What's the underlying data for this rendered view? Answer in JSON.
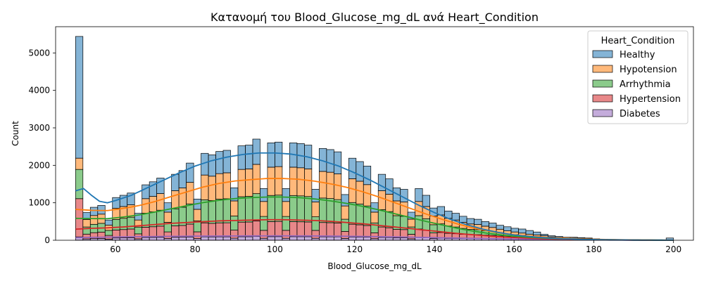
{
  "chart_data": {
    "type": "bar",
    "stacked": true,
    "title": "Κατανομή του Blood_Glucose_mg_dL ανά Heart_Condition",
    "xlabel": "Blood_Glucose_mg_dL",
    "ylabel": "Count",
    "xlim": [
      45,
      205
    ],
    "ylim": [
      0,
      5700
    ],
    "xticks": [
      60,
      80,
      100,
      120,
      140,
      160,
      180,
      200
    ],
    "yticks": [
      0,
      1000,
      2000,
      3000,
      4000,
      5000
    ],
    "grid": false,
    "legend": {
      "title": "Heart_Condition",
      "position": "top-right"
    },
    "bins": {
      "start": 50,
      "end": 200,
      "count": 81
    },
    "series": [
      {
        "name": "Healthy",
        "color": "#1f77b4",
        "totals": [
          5440,
          740,
          880,
          930,
          540,
          1140,
          1200,
          1260,
          720,
          1480,
          1560,
          1660,
          1000,
          1760,
          1860,
          2060,
          1100,
          2320,
          2280,
          2370,
          2400,
          1400,
          2520,
          2540,
          2700,
          1380,
          2600,
          2620,
          1380,
          2600,
          2580,
          2540,
          1360,
          2450,
          2420,
          2360,
          1220,
          2190,
          2100,
          1980,
          1000,
          1760,
          1640,
          1400,
          1360,
          750,
          1380,
          1200,
          860,
          900,
          780,
          720,
          640,
          580,
          560,
          500,
          460,
          400,
          360,
          320,
          300,
          260,
          220,
          160,
          120,
          100,
          80,
          80,
          70,
          60,
          40,
          30,
          20,
          20,
          10,
          10,
          10,
          10,
          10,
          10,
          60
        ]
      },
      {
        "name": "Hypotension",
        "color": "#ff7f0e"
      },
      {
        "name": "Arrhythmia",
        "color": "#2ca02c"
      },
      {
        "name": "Hypertension",
        "color": "#d62728"
      },
      {
        "name": "Diabetes",
        "color": "#9467bd"
      }
    ],
    "kde_curves": [
      {
        "series": "Healthy",
        "color": "#1f77b4",
        "points": [
          [
            50,
            1320
          ],
          [
            52,
            1380
          ],
          [
            54,
            1200
          ],
          [
            56,
            1040
          ],
          [
            58,
            1000
          ],
          [
            60,
            1060
          ],
          [
            64,
            1200
          ],
          [
            68,
            1400
          ],
          [
            72,
            1600
          ],
          [
            76,
            1800
          ],
          [
            80,
            1980
          ],
          [
            84,
            2120
          ],
          [
            88,
            2220
          ],
          [
            92,
            2290
          ],
          [
            96,
            2330
          ],
          [
            100,
            2330
          ],
          [
            104,
            2300
          ],
          [
            108,
            2230
          ],
          [
            112,
            2120
          ],
          [
            116,
            1980
          ],
          [
            120,
            1800
          ],
          [
            124,
            1600
          ],
          [
            128,
            1380
          ],
          [
            132,
            1160
          ],
          [
            136,
            940
          ],
          [
            140,
            740
          ],
          [
            144,
            560
          ],
          [
            148,
            420
          ],
          [
            152,
            300
          ],
          [
            156,
            210
          ],
          [
            160,
            140
          ],
          [
            166,
            80
          ],
          [
            172,
            40
          ],
          [
            180,
            18
          ],
          [
            190,
            6
          ],
          [
            200,
            2
          ]
        ]
      },
      {
        "series": "Hypotension",
        "color": "#ff7f0e",
        "points": [
          [
            50,
            450
          ],
          [
            54,
            420
          ],
          [
            58,
            410
          ],
          [
            62,
            440
          ],
          [
            66,
            480
          ],
          [
            70,
            540
          ],
          [
            74,
            620
          ],
          [
            78,
            700
          ],
          [
            82,
            780
          ],
          [
            86,
            840
          ],
          [
            90,
            880
          ],
          [
            94,
            900
          ],
          [
            98,
            920
          ],
          [
            102,
            920
          ],
          [
            106,
            910
          ],
          [
            110,
            880
          ],
          [
            114,
            840
          ],
          [
            118,
            790
          ],
          [
            122,
            720
          ],
          [
            126,
            640
          ],
          [
            130,
            550
          ],
          [
            134,
            460
          ],
          [
            138,
            370
          ],
          [
            142,
            290
          ],
          [
            146,
            220
          ],
          [
            150,
            160
          ],
          [
            154,
            115
          ],
          [
            158,
            80
          ],
          [
            164,
            50
          ],
          [
            170,
            30
          ],
          [
            180,
            12
          ],
          [
            190,
            4
          ],
          [
            200,
            1
          ]
        ]
      },
      {
        "series": "Arrhythmia",
        "color": "#2ca02c",
        "points": [
          [
            50,
            420
          ],
          [
            54,
            400
          ],
          [
            58,
            390
          ],
          [
            62,
            420
          ],
          [
            66,
            460
          ],
          [
            70,
            520
          ],
          [
            74,
            590
          ],
          [
            78,
            660
          ],
          [
            82,
            730
          ],
          [
            86,
            780
          ],
          [
            90,
            820
          ],
          [
            94,
            840
          ],
          [
            98,
            850
          ],
          [
            102,
            850
          ],
          [
            106,
            840
          ],
          [
            110,
            810
          ],
          [
            114,
            770
          ],
          [
            118,
            720
          ],
          [
            122,
            660
          ],
          [
            126,
            590
          ],
          [
            130,
            510
          ],
          [
            134,
            430
          ],
          [
            138,
            350
          ],
          [
            142,
            280
          ],
          [
            146,
            210
          ],
          [
            150,
            155
          ],
          [
            154,
            110
          ],
          [
            158,
            75
          ],
          [
            164,
            45
          ],
          [
            170,
            25
          ],
          [
            180,
            10
          ],
          [
            190,
            3
          ],
          [
            200,
            1
          ]
        ]
      },
      {
        "series": "Hypertension",
        "color": "#d62728",
        "points": [
          [
            50,
            260
          ],
          [
            54,
            280
          ],
          [
            58,
            290
          ],
          [
            62,
            310
          ],
          [
            66,
            340
          ],
          [
            70,
            370
          ],
          [
            74,
            400
          ],
          [
            78,
            420
          ],
          [
            82,
            440
          ],
          [
            86,
            460
          ],
          [
            90,
            470
          ],
          [
            94,
            480
          ],
          [
            98,
            490
          ],
          [
            102,
            490
          ],
          [
            106,
            480
          ],
          [
            110,
            470
          ],
          [
            114,
            450
          ],
          [
            118,
            420
          ],
          [
            122,
            390
          ],
          [
            126,
            350
          ],
          [
            130,
            310
          ],
          [
            134,
            270
          ],
          [
            138,
            230
          ],
          [
            142,
            190
          ],
          [
            146,
            150
          ],
          [
            150,
            120
          ],
          [
            154,
            90
          ],
          [
            158,
            65
          ],
          [
            164,
            40
          ],
          [
            170,
            25
          ],
          [
            180,
            10
          ],
          [
            190,
            3
          ],
          [
            200,
            1
          ]
        ]
      },
      {
        "series": "Diabetes",
        "color": "#9467bd",
        "points": [
          [
            50,
            70
          ],
          [
            56,
            80
          ],
          [
            62,
            90
          ],
          [
            70,
            100
          ],
          [
            80,
            110
          ],
          [
            90,
            115
          ],
          [
            100,
            118
          ],
          [
            110,
            115
          ],
          [
            120,
            105
          ],
          [
            130,
            90
          ],
          [
            140,
            70
          ],
          [
            150,
            50
          ],
          [
            160,
            32
          ],
          [
            170,
            18
          ],
          [
            180,
            8
          ],
          [
            190,
            3
          ],
          [
            200,
            1
          ]
        ]
      }
    ]
  }
}
